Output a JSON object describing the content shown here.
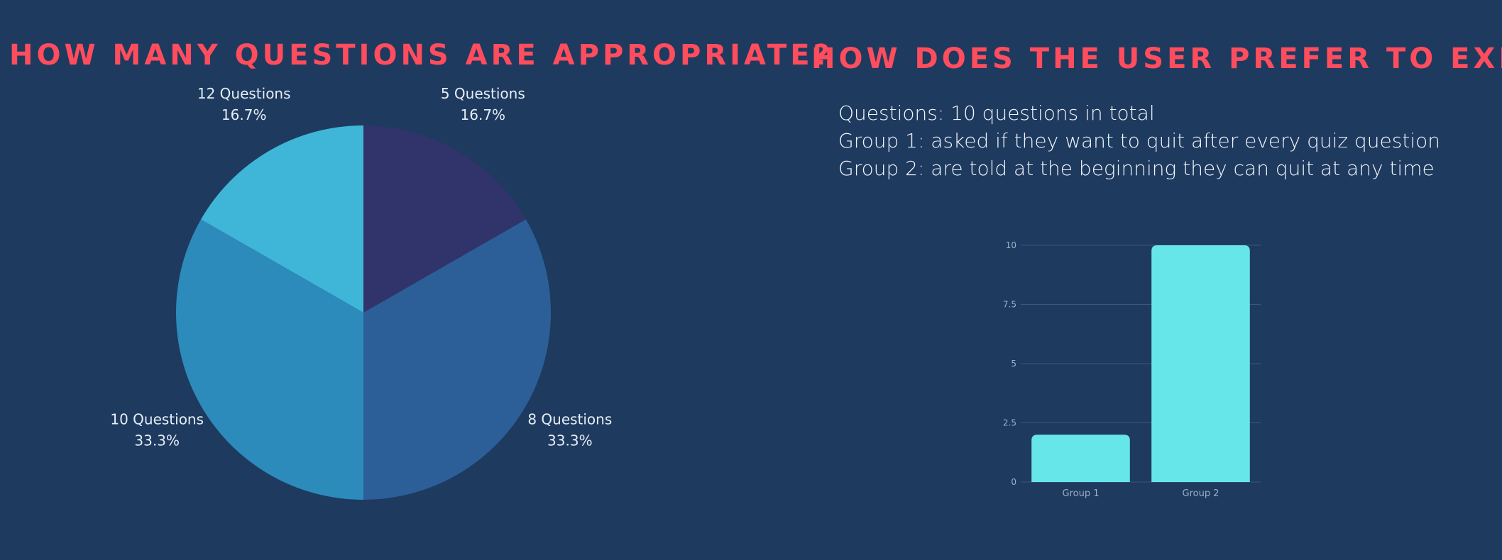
{
  "headings": {
    "left": "HOW MANY QUESTIONS ARE APPROPRIATE?",
    "right": "HOW DOES THE USER PREFER TO EXIT?"
  },
  "info": {
    "lines": [
      "Questions: 10 questions in total",
      "Group 1: asked if they want to quit after every quiz question",
      "Group 2: are told at the beginning they can quit at any time"
    ]
  },
  "chart_data": [
    {
      "type": "pie",
      "title": "HOW MANY QUESTIONS ARE APPROPRIATE?",
      "slices": [
        {
          "label": "5 Questions",
          "percent_label": "16.7%",
          "value": 16.7,
          "color": "#31336b"
        },
        {
          "label": "8 Questions",
          "percent_label": "33.3%",
          "value": 33.3,
          "color": "#2c5f97"
        },
        {
          "label": "10 Questions",
          "percent_label": "33.3%",
          "value": 33.3,
          "color": "#2c8bbb"
        },
        {
          "label": "12 Questions",
          "percent_label": "16.7%",
          "value": 16.7,
          "color": "#3fb6d7"
        }
      ]
    },
    {
      "type": "bar",
      "title": "HOW DOES THE USER PREFER TO EXIT?",
      "categories": [
        "Group 1",
        "Group 2"
      ],
      "values": [
        2,
        10
      ],
      "ylim": [
        0,
        10
      ],
      "yticks": [
        0,
        2.5,
        5,
        7.5,
        10
      ],
      "ytick_labels": [
        "0",
        "2.5",
        "5",
        "7.5",
        "10"
      ],
      "grid": true,
      "bar_color": "#67e6e9",
      "grid_color": "#3b5878"
    }
  ]
}
